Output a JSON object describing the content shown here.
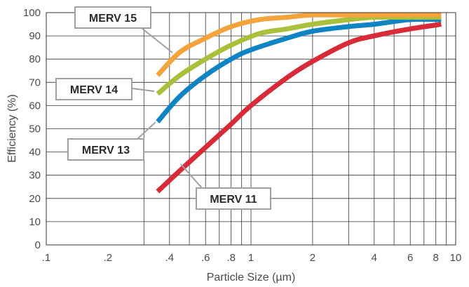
{
  "chart_data": {
    "type": "line",
    "title": "",
    "xlabel": "Particle Size (µm)",
    "ylabel": "Efficiency (%)",
    "x_scale": "log",
    "xlim": [
      0.1,
      10
    ],
    "ylim": [
      0,
      100
    ],
    "grid": true,
    "x_ticks": [
      {
        "value": 0.1,
        "label": ".1"
      },
      {
        "value": 0.2,
        "label": ".2"
      },
      {
        "value": 0.4,
        "label": ".4"
      },
      {
        "value": 0.6,
        "label": ".6"
      },
      {
        "value": 0.8,
        "label": ".8"
      },
      {
        "value": 1,
        "label": "1"
      },
      {
        "value": 2,
        "label": "2"
      },
      {
        "value": 4,
        "label": "4"
      },
      {
        "value": 6,
        "label": "6"
      },
      {
        "value": 8,
        "label": "8"
      },
      {
        "value": 10,
        "label": "10"
      }
    ],
    "x_gridlines": [
      0.3,
      0.4,
      0.5,
      0.6,
      0.7,
      0.8,
      0.9,
      1,
      2,
      3,
      4,
      5,
      6,
      7,
      8,
      9
    ],
    "y_ticks": [
      0,
      10,
      20,
      30,
      40,
      50,
      60,
      70,
      80,
      90,
      100
    ],
    "series": [
      {
        "name": "MERV 15",
        "color": "#f5a33b",
        "x": [
          0.35,
          0.45,
          0.6,
          0.8,
          1.1,
          1.5,
          2,
          3,
          4,
          6,
          8.5
        ],
        "y": [
          73,
          83,
          89,
          94,
          97,
          98,
          99,
          99,
          99,
          99,
          99
        ]
      },
      {
        "name": "MERV 14",
        "color": "#a8c03a",
        "x": [
          0.35,
          0.45,
          0.6,
          0.8,
          1.1,
          1.5,
          2,
          3,
          4,
          6,
          8.5
        ],
        "y": [
          65,
          73,
          80,
          86,
          91,
          93,
          95,
          97,
          98,
          98,
          98
        ]
      },
      {
        "name": "MERV 13",
        "color": "#0e84c4",
        "x": [
          0.35,
          0.45,
          0.6,
          0.8,
          1.0,
          1.5,
          2,
          3,
          4,
          6,
          8.5
        ],
        "y": [
          53,
          64,
          73,
          80,
          84,
          89,
          92,
          94,
          95,
          97,
          97
        ]
      },
      {
        "name": "MERV 11",
        "color": "#d92a37",
        "x": [
          0.35,
          0.45,
          0.6,
          0.8,
          1.0,
          1.5,
          2,
          3,
          4,
          6,
          8.5
        ],
        "y": [
          23,
          32,
          42,
          52,
          60,
          72,
          79,
          87,
          90,
          93,
          95
        ]
      }
    ]
  }
}
